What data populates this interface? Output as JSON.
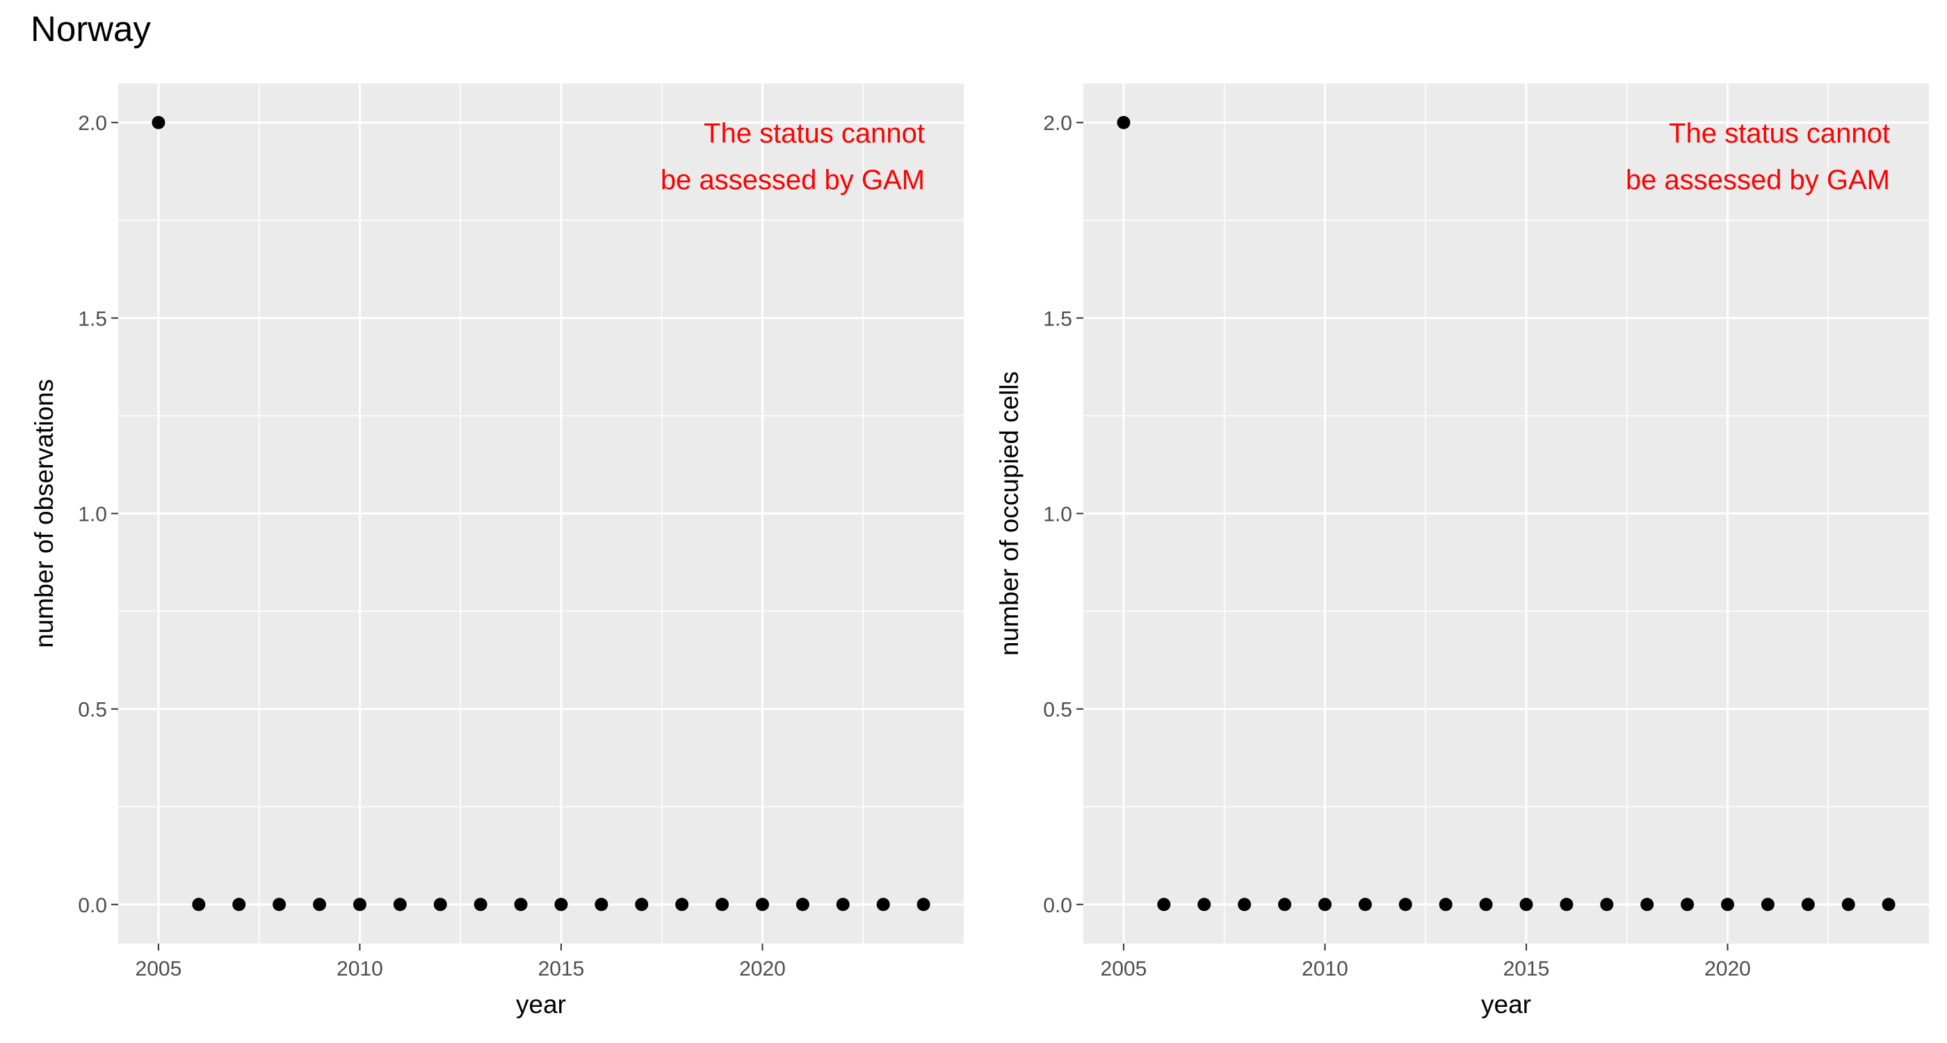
{
  "figure": {
    "title": "Norway"
  },
  "chart_data": [
    {
      "type": "scatter",
      "xlabel": "year",
      "ylabel": "number of observations",
      "annotation": [
        "The status cannot",
        "be assessed by GAM"
      ],
      "annotation_color": "#ff0000",
      "panel_background": "#ebebeb",
      "grid": true,
      "xlim": [
        2004,
        2025
      ],
      "ylim": [
        -0.1,
        2.1
      ],
      "x_ticks": [
        2005,
        2010,
        2015,
        2020
      ],
      "x_tick_labels": [
        "2005",
        "2010",
        "2015",
        "2020"
      ],
      "y_ticks": [
        0,
        0.5,
        1,
        1.5,
        2
      ],
      "y_tick_labels": [
        "0.0",
        "0.5",
        "1.0",
        "1.5",
        "2.0"
      ],
      "points": [
        {
          "x": 2005,
          "y": 2
        },
        {
          "x": 2006,
          "y": 0
        },
        {
          "x": 2007,
          "y": 0
        },
        {
          "x": 2008,
          "y": 0
        },
        {
          "x": 2009,
          "y": 0
        },
        {
          "x": 2010,
          "y": 0
        },
        {
          "x": 2011,
          "y": 0
        },
        {
          "x": 2012,
          "y": 0
        },
        {
          "x": 2013,
          "y": 0
        },
        {
          "x": 2014,
          "y": 0
        },
        {
          "x": 2015,
          "y": 0
        },
        {
          "x": 2016,
          "y": 0
        },
        {
          "x": 2017,
          "y": 0
        },
        {
          "x": 2018,
          "y": 0
        },
        {
          "x": 2019,
          "y": 0
        },
        {
          "x": 2020,
          "y": 0
        },
        {
          "x": 2021,
          "y": 0
        },
        {
          "x": 2022,
          "y": 0
        },
        {
          "x": 2023,
          "y": 0
        },
        {
          "x": 2024,
          "y": 0
        }
      ]
    },
    {
      "type": "scatter",
      "xlabel": "year",
      "ylabel": "number of occupied cells",
      "annotation": [
        "The status cannot",
        "be assessed by GAM"
      ],
      "annotation_color": "#ff0000",
      "panel_background": "#ebebeb",
      "grid": true,
      "xlim": [
        2004,
        2025
      ],
      "ylim": [
        -0.1,
        2.1
      ],
      "x_ticks": [
        2005,
        2010,
        2015,
        2020
      ],
      "x_tick_labels": [
        "2005",
        "2010",
        "2015",
        "2020"
      ],
      "y_ticks": [
        0,
        0.5,
        1,
        1.5,
        2
      ],
      "y_tick_labels": [
        "0.0",
        "0.5",
        "1.0",
        "1.5",
        "2.0"
      ],
      "points": [
        {
          "x": 2005,
          "y": 2
        },
        {
          "x": 2006,
          "y": 0
        },
        {
          "x": 2007,
          "y": 0
        },
        {
          "x": 2008,
          "y": 0
        },
        {
          "x": 2009,
          "y": 0
        },
        {
          "x": 2010,
          "y": 0
        },
        {
          "x": 2011,
          "y": 0
        },
        {
          "x": 2012,
          "y": 0
        },
        {
          "x": 2013,
          "y": 0
        },
        {
          "x": 2014,
          "y": 0
        },
        {
          "x": 2015,
          "y": 0
        },
        {
          "x": 2016,
          "y": 0
        },
        {
          "x": 2017,
          "y": 0
        },
        {
          "x": 2018,
          "y": 0
        },
        {
          "x": 2019,
          "y": 0
        },
        {
          "x": 2020,
          "y": 0
        },
        {
          "x": 2021,
          "y": 0
        },
        {
          "x": 2022,
          "y": 0
        },
        {
          "x": 2023,
          "y": 0
        },
        {
          "x": 2024,
          "y": 0
        }
      ]
    }
  ]
}
